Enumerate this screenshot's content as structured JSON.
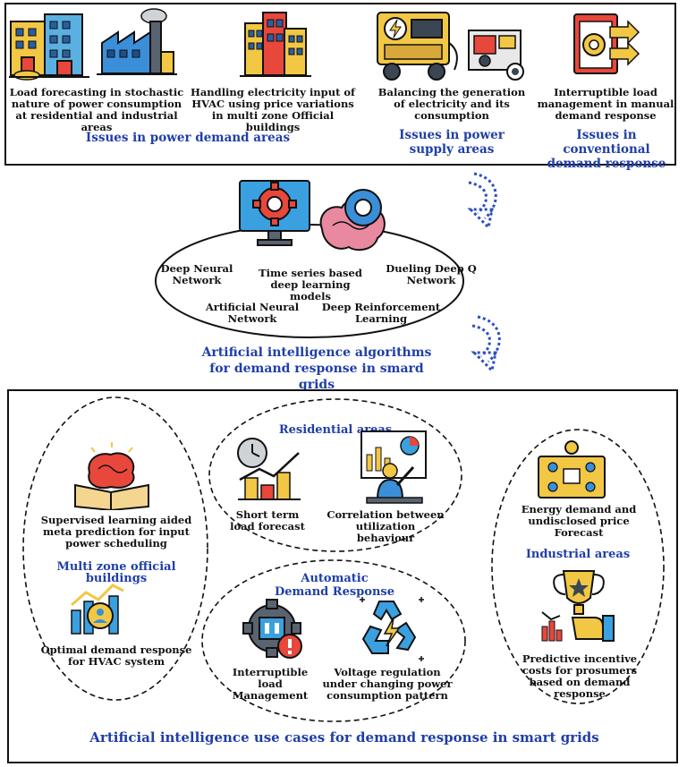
{
  "top": {
    "item1": "Load forecasting in stochastic nature of power consumption at residential and industrial areas",
    "item2": "Handling electricity input of HVAC using price variations in multi zone Official buildings",
    "item3": "Balancing the generation of electricity and its consumption",
    "item4": "Interruptible load management in manual demand response",
    "cat_demand": "Issues in power demand areas",
    "cat_supply": "Issues in power supply areas",
    "cat_conventional": "Issues in conventional demand response"
  },
  "middle": {
    "alg1": "Deep Neural Network",
    "alg2": "Time series based deep learning models",
    "alg3": "Dueling Deep Q Network",
    "alg4": "Artificial Neural Network",
    "alg5": "Deep Reinforcement Learning",
    "caption": "Artificial intelligence algorithms for demand response in smard grids"
  },
  "bottom": {
    "left_item1": "Supervised learning aided meta prediction for input power scheduling",
    "left_title": "Multi zone official buildings",
    "left_item2": "Optimal demand response for HVAC system",
    "res_title": "Residential areas",
    "res_item1": "Short term load forecast",
    "res_item2": "Correlation between utilization behaviour",
    "adr_title": "Automatic Demand Response",
    "adr_item1": "Interruptible load Management",
    "adr_item2": "Voltage regulation under changing power consumption pattern",
    "ind_item1": "Energy demand and undisclosed price Forecast",
    "ind_title": "Industrial areas",
    "ind_item2": "Predictive incentive costs for prosumers based on demand response",
    "caption": "Artificial intelligence use cases for demand response in smart grids"
  },
  "icons": [
    "apartment-buildings-icon",
    "factory-icon",
    "office-building-icon",
    "power-generator-icon",
    "engine-generator-icon",
    "load-management-icon",
    "ai-monitor-gear-icon",
    "brain-gear-icon",
    "brain-book-icon",
    "hvac-chart-icon",
    "clock-chart-icon",
    "presentation-icon",
    "energy-board-icon",
    "trophy-icon",
    "interruptible-gear-icon",
    "recycle-power-icon",
    "dashed-arrow-icon"
  ]
}
